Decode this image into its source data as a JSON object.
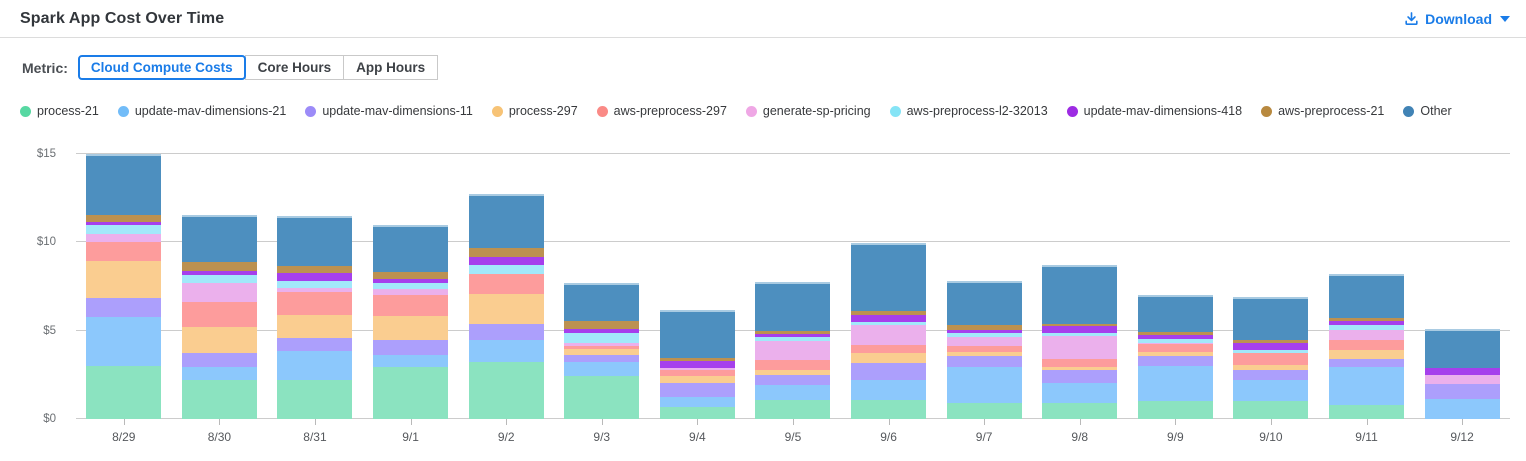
{
  "header": {
    "title": "Spark App Cost Over Time",
    "download_label": "Download"
  },
  "metric": {
    "label": "Metric:",
    "options": [
      {
        "label": "Cloud Compute Costs",
        "selected": true
      },
      {
        "label": "Core Hours",
        "selected": false
      },
      {
        "label": "App Hours",
        "selected": false
      }
    ]
  },
  "colors": {
    "accent_blue": "#1a7ce8",
    "gridline": "#cccccc",
    "axis_text": "#6b6f73"
  },
  "chart_data": {
    "type": "bar",
    "stacked": true,
    "grid": true,
    "legend_position": "top",
    "title": "",
    "xlabel": "",
    "ylabel": "",
    "ylim": [
      0,
      15
    ],
    "y_ticks": [
      {
        "label": "$0",
        "value": 0
      },
      {
        "label": "$5",
        "value": 5
      },
      {
        "label": "$10",
        "value": 10
      },
      {
        "label": "$15",
        "value": 15
      }
    ],
    "categories": [
      "8/29",
      "8/30",
      "8/31",
      "9/1",
      "9/2",
      "9/3",
      "9/4",
      "9/5",
      "9/6",
      "9/7",
      "9/8",
      "9/9",
      "9/10",
      "9/11",
      "9/12"
    ],
    "series": [
      {
        "name": "process-21",
        "color": "#8be3c0",
        "dot_color": "#57d8a2",
        "values": [
          3.0,
          2.2,
          2.2,
          2.95,
          3.2,
          2.45,
          0.7,
          1.1,
          1.1,
          0.9,
          0.9,
          1.0,
          1.0,
          0.8,
          0.0
        ]
      },
      {
        "name": "update-mav-dimensions-21",
        "color": "#8cc8fc",
        "dot_color": "#72bcf8",
        "values": [
          2.8,
          0.75,
          1.65,
          0.7,
          1.3,
          0.75,
          0.55,
          0.8,
          1.1,
          2.05,
          1.15,
          2.0,
          1.2,
          2.15,
          1.15
        ]
      },
      {
        "name": "update-mav-dimensions-11",
        "color": "#ac9ffc",
        "dot_color": "#9c8bf8",
        "values": [
          1.05,
          0.8,
          0.75,
          0.8,
          0.9,
          0.45,
          0.8,
          0.6,
          1.0,
          0.6,
          0.7,
          0.57,
          0.6,
          0.45,
          0.85
        ]
      },
      {
        "name": "process-297",
        "color": "#facd90",
        "dot_color": "#f7c376",
        "values": [
          2.1,
          1.45,
          1.3,
          1.4,
          1.7,
          0.3,
          0.4,
          0.25,
          0.55,
          0.22,
          0.2,
          0.2,
          0.28,
          0.5,
          0.0
        ]
      },
      {
        "name": "aws-preprocess-297",
        "color": "#fd9c9c",
        "dot_color": "#fa8a86",
        "values": [
          1.05,
          1.45,
          1.3,
          1.15,
          1.1,
          0.2,
          0.3,
          0.6,
          0.45,
          0.35,
          0.45,
          0.47,
          0.65,
          0.6,
          0.0
        ]
      },
      {
        "name": "generate-sp-pricing",
        "color": "#ebb0ec",
        "dot_color": "#efa7e5",
        "values": [
          0.5,
          1.05,
          0.2,
          0.35,
          0.0,
          0.18,
          0.15,
          1.05,
          1.1,
          0.55,
          1.3,
          0.08,
          0.0,
          0.55,
          0.5
        ]
      },
      {
        "name": "aws-preprocess-l2-32013",
        "color": "#a2e8fa",
        "dot_color": "#85e4f6",
        "values": [
          0.48,
          0.47,
          0.4,
          0.38,
          0.5,
          0.55,
          0.0,
          0.22,
          0.2,
          0.2,
          0.15,
          0.2,
          0.2,
          0.28,
          0.0
        ]
      },
      {
        "name": "update-mav-dimensions-418",
        "color": "#a63fec",
        "dot_color": "#9d2be3",
        "values": [
          0.2,
          0.2,
          0.47,
          0.2,
          0.45,
          0.2,
          0.4,
          0.2,
          0.4,
          0.2,
          0.4,
          0.25,
          0.38,
          0.25,
          0.37
        ]
      },
      {
        "name": "aws-preprocess-21",
        "color": "#bc9150",
        "dot_color": "#b8893f",
        "values": [
          0.37,
          0.5,
          0.38,
          0.38,
          0.55,
          0.47,
          0.15,
          0.15,
          0.2,
          0.23,
          0.15,
          0.18,
          0.18,
          0.17,
          0.0
        ]
      },
      {
        "name": "Other",
        "color": "#4d8fbf",
        "dot_color": "#4183b5",
        "values": [
          3.45,
          2.7,
          2.85,
          2.65,
          3.05,
          2.15,
          2.75,
          2.8,
          3.85,
          2.5,
          3.35,
          2.08,
          2.4,
          2.45,
          2.2
        ]
      }
    ]
  }
}
